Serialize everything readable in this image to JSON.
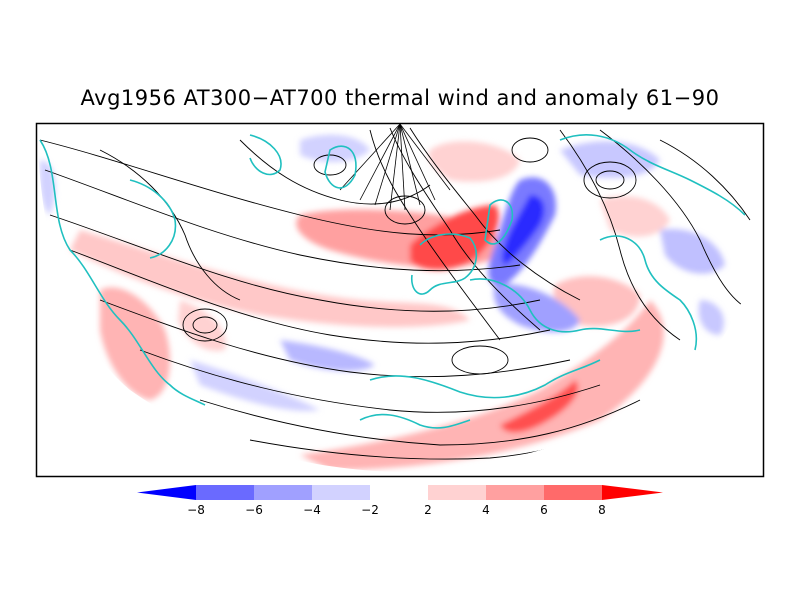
{
  "title": "Avg1956 AT300−AT700 thermal wind and anomaly 61−90",
  "colorbar": {
    "labels": [
      "−8",
      "−6",
      "−4",
      "−2",
      "2",
      "4",
      "6",
      "8"
    ],
    "colors": [
      "#0000ff",
      "#6a6aff",
      "#a0a0ff",
      "#d2d2ff",
      "#ffffff",
      "#ffd2d2",
      "#ffa0a0",
      "#ff6a6a",
      "#ff0000"
    ]
  },
  "colors": {
    "coastline": "#20c0c0",
    "streamline": "#000000",
    "frame": "#000000"
  }
}
